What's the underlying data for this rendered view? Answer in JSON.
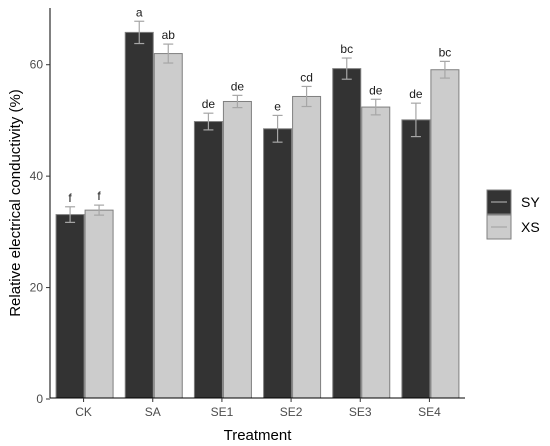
{
  "chart_data": {
    "type": "bar",
    "xlabel": "Treatment",
    "ylabel": "Relative electrical conductivity (%)",
    "categories": [
      "CK",
      "SA",
      "SE1",
      "SE2",
      "SE3",
      "SE4"
    ],
    "ylim": [
      0,
      70
    ],
    "yticks": [
      "0",
      "20",
      "40",
      "60"
    ],
    "grid": false,
    "legend_position": "right",
    "series": [
      {
        "name": "SY",
        "color": "#333333",
        "values": [
          33.1,
          65.8,
          49.8,
          48.5,
          59.3,
          50.1
        ],
        "errors": [
          1.4,
          2.0,
          1.5,
          2.4,
          1.9,
          3.0
        ],
        "labels": [
          "f",
          "a",
          "de",
          "e",
          "bc",
          "de"
        ]
      },
      {
        "name": "XS",
        "color": "#cccccc",
        "values": [
          33.9,
          62.0,
          53.4,
          54.3,
          52.4,
          59.1
        ],
        "errors": [
          0.9,
          1.7,
          1.1,
          1.8,
          1.4,
          1.5
        ],
        "labels": [
          "f",
          "ab",
          "de",
          "cd",
          "de",
          "bc"
        ]
      }
    ]
  }
}
